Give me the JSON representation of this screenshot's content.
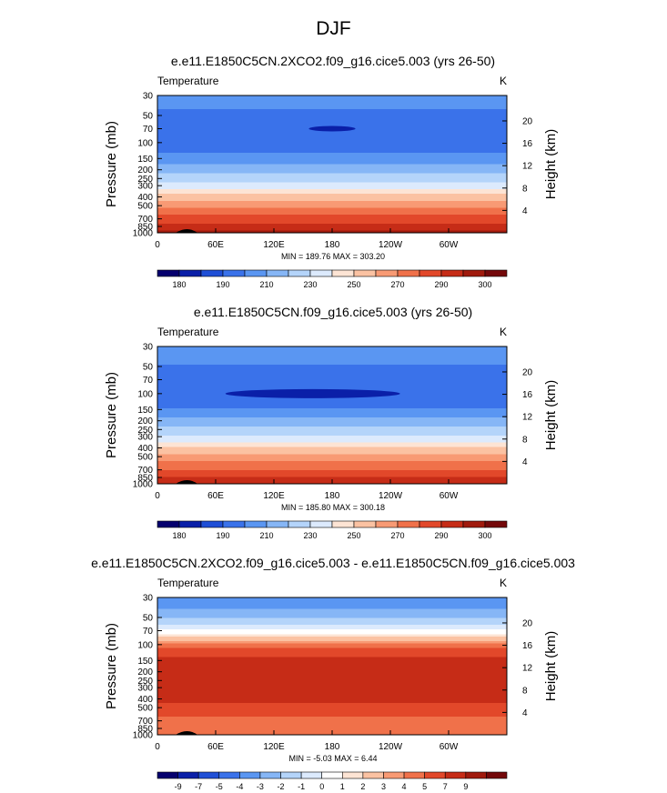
{
  "page": {
    "title": "DJF"
  },
  "colors": {
    "abs_palette": [
      "#05006e",
      "#0a1fa8",
      "#1f4fd6",
      "#3a72ea",
      "#5a96f2",
      "#86b6f6",
      "#b4d4fa",
      "#dceafd",
      "#fde4d4",
      "#fbc2a2",
      "#f89a74",
      "#f0714a",
      "#e2482a",
      "#c62c17",
      "#a01a0d",
      "#74080a"
    ],
    "diff_palette": [
      "#05006e",
      "#0a1fa8",
      "#1f4fd6",
      "#3a72ea",
      "#5a96f2",
      "#86b6f6",
      "#b4d4fa",
      "#dceafd",
      "#ffffff",
      "#fde4d4",
      "#fbc2a2",
      "#f89a74",
      "#f0714a",
      "#e2482a",
      "#c62c17",
      "#a01a0d",
      "#74080a"
    ]
  },
  "chart_data": [
    {
      "type": "heatmap",
      "title": "e.e11.E1850C5CN.2XCO2.f09_g16.cice5.003 (yrs 26-50)",
      "left_string": "Temperature",
      "right_string": "K",
      "ylabel": "Pressure (mb)",
      "ylabel_right": "Height (km)",
      "x_ticks": [
        "0",
        "60E",
        "120E",
        "180",
        "120W",
        "60W"
      ],
      "y_ticks": [
        "30",
        "50",
        "70",
        "100",
        "150",
        "200",
        "250",
        "300",
        "400",
        "500",
        "700",
        "850",
        "1000"
      ],
      "height_ticks": [
        "20",
        "16",
        "12",
        "8",
        "4"
      ],
      "stats": "MIN = 189.76  MAX = 303.20",
      "colorbar_labels": [
        "180",
        "190",
        "210",
        "230",
        "250",
        "270",
        "290",
        "300"
      ],
      "profile": [
        {
          "p": 30,
          "v": 213
        },
        {
          "p": 40,
          "v": 209
        },
        {
          "p": 50,
          "v": 205
        },
        {
          "p": 70,
          "v": 202
        },
        {
          "p": 100,
          "v": 204
        },
        {
          "p": 130,
          "v": 208
        },
        {
          "p": 150,
          "v": 211
        },
        {
          "p": 180,
          "v": 216
        },
        {
          "p": 200,
          "v": 220
        },
        {
          "p": 250,
          "v": 228
        },
        {
          "p": 300,
          "v": 236
        },
        {
          "p": 400,
          "v": 251
        },
        {
          "p": 500,
          "v": 262
        },
        {
          "p": 600,
          "v": 270
        },
        {
          "p": 700,
          "v": 276
        },
        {
          "p": 850,
          "v": 284
        },
        {
          "p": 925,
          "v": 288
        },
        {
          "p": 1000,
          "v": 292
        }
      ],
      "features": [
        {
          "lon": 180,
          "p": 70,
          "value": 188,
          "half_width": 12,
          "thickness": 6
        }
      ]
    },
    {
      "type": "heatmap",
      "title": "e.e11.E1850C5CN.f09_g16.cice5.003 (yrs 26-50)",
      "left_string": "Temperature",
      "right_string": "K",
      "ylabel": "Pressure (mb)",
      "ylabel_right": "Height (km)",
      "x_ticks": [
        "0",
        "60E",
        "120E",
        "180",
        "120W",
        "60W"
      ],
      "y_ticks": [
        "30",
        "50",
        "70",
        "100",
        "150",
        "200",
        "250",
        "300",
        "400",
        "500",
        "700",
        "850",
        "1000"
      ],
      "height_ticks": [
        "20",
        "16",
        "12",
        "8",
        "4"
      ],
      "stats": "MIN = 185.80  MAX = 300.18",
      "colorbar_labels": [
        "180",
        "190",
        "210",
        "230",
        "250",
        "270",
        "290",
        "300"
      ],
      "profile": [
        {
          "p": 30,
          "v": 216
        },
        {
          "p": 40,
          "v": 211
        },
        {
          "p": 50,
          "v": 207
        },
        {
          "p": 70,
          "v": 203
        },
        {
          "p": 100,
          "v": 201
        },
        {
          "p": 130,
          "v": 205
        },
        {
          "p": 150,
          "v": 209
        },
        {
          "p": 180,
          "v": 215
        },
        {
          "p": 200,
          "v": 219
        },
        {
          "p": 250,
          "v": 226
        },
        {
          "p": 300,
          "v": 234
        },
        {
          "p": 400,
          "v": 248
        },
        {
          "p": 500,
          "v": 259
        },
        {
          "p": 600,
          "v": 267
        },
        {
          "p": 700,
          "v": 273
        },
        {
          "p": 850,
          "v": 281
        },
        {
          "p": 925,
          "v": 285
        },
        {
          "p": 1000,
          "v": 289
        }
      ],
      "features": [
        {
          "lon": 160,
          "p": 100,
          "value": 188,
          "half_width": 45,
          "thickness": 10
        }
      ]
    },
    {
      "type": "heatmap",
      "title": "e.e11.E1850C5CN.2XCO2.f09_g16.cice5.003 - e.e11.E1850C5CN.f09_g16.cice5.003",
      "left_string": "Temperature",
      "right_string": "K",
      "ylabel": "Pressure (mb)",
      "ylabel_right": "Height (km)",
      "x_ticks": [
        "0",
        "60E",
        "120E",
        "180",
        "120W",
        "60W"
      ],
      "y_ticks": [
        "30",
        "50",
        "70",
        "100",
        "150",
        "200",
        "250",
        "300",
        "400",
        "500",
        "700",
        "850",
        "1000"
      ],
      "height_ticks": [
        "20",
        "16",
        "12",
        "8",
        "4"
      ],
      "stats": "MIN = -5.03  MAX =  6.44",
      "colorbar_labels": [
        "-9",
        "-7",
        "-5",
        "-4",
        "-3",
        "-2",
        "-1",
        "0",
        "1",
        "2",
        "3",
        "4",
        "5",
        "7",
        "9"
      ],
      "profile": [
        {
          "p": 30,
          "v": -3.6
        },
        {
          "p": 40,
          "v": -3.0
        },
        {
          "p": 50,
          "v": -2.2
        },
        {
          "p": 60,
          "v": -1.2
        },
        {
          "p": 70,
          "v": -0.3
        },
        {
          "p": 85,
          "v": 1.5
        },
        {
          "p": 100,
          "v": 3.2
        },
        {
          "p": 120,
          "v": 4.6
        },
        {
          "p": 150,
          "v": 5.3
        },
        {
          "p": 200,
          "v": 5.6
        },
        {
          "p": 300,
          "v": 5.5
        },
        {
          "p": 400,
          "v": 5.2
        },
        {
          "p": 500,
          "v": 4.6
        },
        {
          "p": 600,
          "v": 4.1
        },
        {
          "p": 700,
          "v": 3.8
        },
        {
          "p": 850,
          "v": 3.4
        },
        {
          "p": 1000,
          "v": 3.1
        }
      ],
      "features": []
    }
  ]
}
